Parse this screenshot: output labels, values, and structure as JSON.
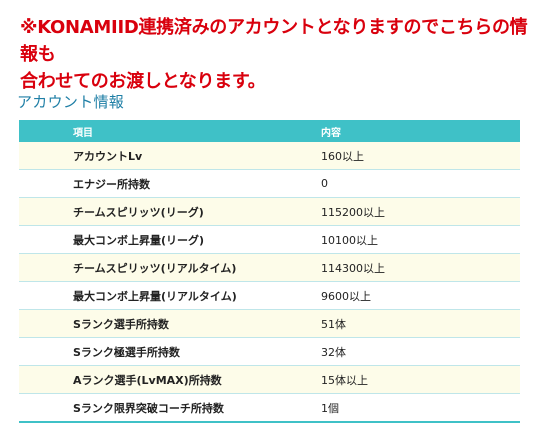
{
  "notice": {
    "line1": "※KONAMIID連携済みのアカウントとなりますのでこちらの情報も",
    "line2": "合わせてのお渡しとなります。"
  },
  "section_title": "アカウント情報",
  "table": {
    "headers": [
      "項目",
      "内容"
    ],
    "rows": [
      {
        "item": "アカウントLv",
        "value": "160以上"
      },
      {
        "item": "エナジー所持数",
        "value": "0"
      },
      {
        "item": "チームスピリッツ(リーグ)",
        "value": "115200以上"
      },
      {
        "item": "最大コンボ上昇量(リーグ)",
        "value": "10100以上"
      },
      {
        "item": "チームスピリッツ(リアルタイム)",
        "value": "114300以上"
      },
      {
        "item": "最大コンボ上昇量(リアルタイム)",
        "value": "9600以上"
      },
      {
        "item": "Sランク選手所持数",
        "value": "51体"
      },
      {
        "item": "Sランク極選手所持数",
        "value": "32体"
      },
      {
        "item": "Aランク選手(LvMAX)所持数",
        "value": "15体以上"
      },
      {
        "item": "Sランク限界突破コーチ所持数",
        "value": "1個"
      }
    ]
  },
  "colors": {
    "notice": "#d9000d",
    "section_title": "#1f7fa6",
    "header_bg": "#3fc1c7",
    "odd_row_bg": "#fdfce9"
  }
}
